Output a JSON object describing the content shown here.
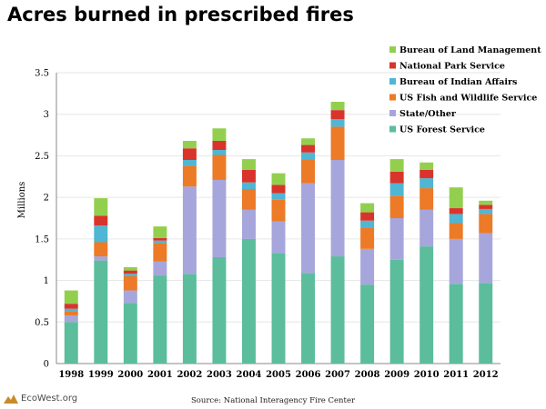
{
  "title": "Acres burned in prescribed fires",
  "source": "Source:  National Interagency Fire Center",
  "logo_text": "EcoWest.org",
  "chart_data": {
    "type": "bar",
    "stacked": true,
    "ylabel": "Millions",
    "ylim": [
      0,
      3.5
    ],
    "yticks": [
      0,
      0.5,
      1,
      1.5,
      2,
      2.5,
      3,
      3.5
    ],
    "ytick_labels": [
      "0",
      "0.5",
      "1",
      "1.5",
      "2",
      "2.5",
      "3",
      "3.5"
    ],
    "legend_position": "top-right",
    "categories": [
      "1998",
      "1999",
      "2000",
      "2001",
      "2002",
      "2003",
      "2004",
      "2005",
      "2006",
      "2007",
      "2008",
      "2009",
      "2010",
      "2011",
      "2012"
    ],
    "series": [
      {
        "name": "US Forest Service",
        "color": "#5bbd9c",
        "values": [
          0.5,
          1.24,
          0.73,
          1.06,
          1.08,
          1.28,
          1.5,
          1.33,
          1.09,
          1.29,
          0.95,
          1.25,
          1.41,
          0.96,
          0.97
        ]
      },
      {
        "name": "State/Other",
        "color": "#a6a6dc",
        "values": [
          0.08,
          0.05,
          0.15,
          0.17,
          1.05,
          0.93,
          0.35,
          0.38,
          1.08,
          1.16,
          0.43,
          0.5,
          0.44,
          0.54,
          0.6
        ]
      },
      {
        "name": "US Fish and Wildlife Service",
        "color": "#ec7a26",
        "values": [
          0.05,
          0.17,
          0.17,
          0.22,
          0.25,
          0.3,
          0.25,
          0.26,
          0.29,
          0.4,
          0.25,
          0.27,
          0.26,
          0.19,
          0.23
        ]
      },
      {
        "name": "Bureau of Indian Affairs",
        "color": "#4fb6d4",
        "values": [
          0.03,
          0.2,
          0.03,
          0.03,
          0.07,
          0.06,
          0.08,
          0.08,
          0.08,
          0.09,
          0.09,
          0.15,
          0.12,
          0.11,
          0.06
        ]
      },
      {
        "name": "National Park Service",
        "color": "#d9342c",
        "values": [
          0.06,
          0.12,
          0.04,
          0.03,
          0.14,
          0.11,
          0.15,
          0.1,
          0.09,
          0.11,
          0.1,
          0.14,
          0.1,
          0.07,
          0.05
        ]
      },
      {
        "name": "Bureau of Land Management",
        "color": "#93cf4e",
        "values": [
          0.16,
          0.21,
          0.04,
          0.14,
          0.09,
          0.15,
          0.13,
          0.14,
          0.08,
          0.1,
          0.11,
          0.15,
          0.09,
          0.25,
          0.05
        ]
      }
    ]
  }
}
